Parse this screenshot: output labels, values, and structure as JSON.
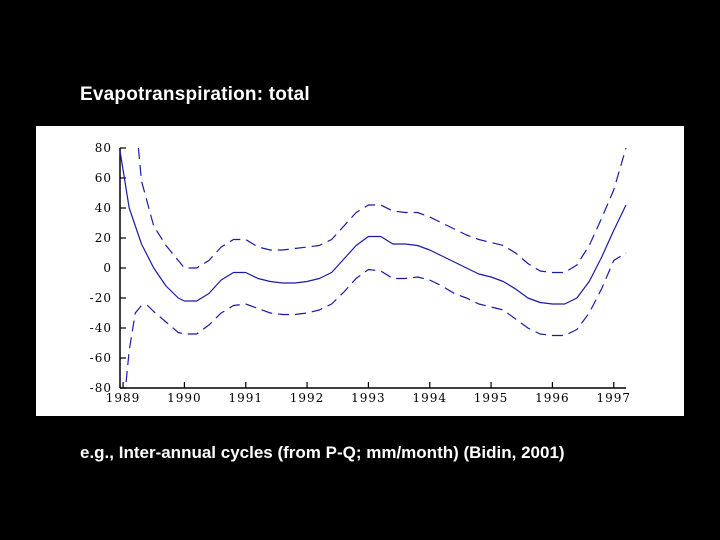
{
  "slide": {
    "title": "Evapotranspiration: total",
    "caption": "e.g., Inter-annual cycles (from P-Q; mm/month) (Bidin, 2001)"
  },
  "chart_data": {
    "type": "line",
    "title": "Evapotranspiration: total",
    "xlabel": "",
    "ylabel": "",
    "xlim": [
      1988.95,
      1997.2
    ],
    "ylim": [
      -80,
      80
    ],
    "x_ticks": [
      1989,
      1990,
      1991,
      1992,
      1993,
      1994,
      1995,
      1996,
      1997
    ],
    "y_ticks": [
      80,
      60,
      40,
      20,
      0,
      -20,
      -40,
      -60,
      -80
    ],
    "grid": false,
    "line_color": "#1a1aa8",
    "series": [
      {
        "style": "solid",
        "x": [
          1988.95,
          1989.1,
          1989.3,
          1989.5,
          1989.7,
          1989.9,
          1990.0,
          1990.2,
          1990.4,
          1990.6,
          1990.8,
          1991.0,
          1991.2,
          1991.4,
          1991.6,
          1991.8,
          1992.0,
          1992.2,
          1992.4,
          1992.6,
          1992.8,
          1993.0,
          1993.2,
          1993.4,
          1993.6,
          1993.8,
          1994.0,
          1994.2,
          1994.4,
          1994.6,
          1994.8,
          1995.0,
          1995.2,
          1995.4,
          1995.6,
          1995.8,
          1996.0,
          1996.2,
          1996.4,
          1996.6,
          1996.8,
          1997.0,
          1997.2
        ],
        "y": [
          78,
          40,
          16,
          0,
          -12,
          -20,
          -22,
          -22,
          -17,
          -8,
          -3,
          -3,
          -7,
          -9,
          -10,
          -10,
          -9,
          -7,
          -3,
          6,
          15,
          21,
          21,
          16,
          16,
          15,
          12,
          8,
          4,
          0,
          -4,
          -6,
          -9,
          -14,
          -20,
          -23,
          -24,
          -24,
          -20,
          -9,
          7,
          25,
          42
        ]
      },
      {
        "style": "dashed",
        "x": [
          1989.25,
          1989.3,
          1989.5,
          1989.7,
          1989.9,
          1990.0,
          1990.2,
          1990.4,
          1990.6,
          1990.8,
          1991.0,
          1991.2,
          1991.4,
          1991.6,
          1991.8,
          1992.0,
          1992.2,
          1992.4,
          1992.6,
          1992.8,
          1993.0,
          1993.2,
          1993.4,
          1993.6,
          1993.8,
          1994.0,
          1994.2,
          1994.4,
          1994.6,
          1994.8,
          1995.0,
          1995.2,
          1995.4,
          1995.6,
          1995.8,
          1996.0,
          1996.2,
          1996.4,
          1996.6,
          1996.8,
          1997.0,
          1997.2
        ],
        "y": [
          80,
          58,
          28,
          15,
          5,
          0,
          0,
          5,
          14,
          19,
          19,
          14,
          12,
          12,
          13,
          14,
          15,
          19,
          28,
          37,
          42,
          42,
          38,
          37,
          37,
          34,
          30,
          26,
          22,
          19,
          17,
          15,
          10,
          3,
          -2,
          -3,
          -3,
          2,
          15,
          33,
          52,
          80
        ]
      },
      {
        "style": "dashed",
        "x": [
          1989.05,
          1989.1,
          1989.2,
          1989.3,
          1989.4,
          1989.5,
          1989.7,
          1989.9,
          1990.0,
          1990.2,
          1990.4,
          1990.6,
          1990.8,
          1991.0,
          1991.2,
          1991.4,
          1991.6,
          1991.8,
          1992.0,
          1992.2,
          1992.4,
          1992.6,
          1992.8,
          1993.0,
          1993.2,
          1993.4,
          1993.6,
          1993.8,
          1994.0,
          1994.2,
          1994.4,
          1994.6,
          1994.8,
          1995.0,
          1995.2,
          1995.4,
          1995.6,
          1995.8,
          1996.0,
          1996.2,
          1996.4,
          1996.6,
          1996.8,
          1997.0,
          1997.2
        ],
        "y": [
          -76,
          -55,
          -30,
          -25,
          -25,
          -29,
          -36,
          -43,
          -44,
          -44,
          -38,
          -30,
          -25,
          -24,
          -27,
          -30,
          -31,
          -31,
          -30,
          -28,
          -24,
          -16,
          -7,
          -1,
          -2,
          -7,
          -7,
          -6,
          -8,
          -12,
          -17,
          -20,
          -24,
          -26,
          -28,
          -34,
          -40,
          -44,
          -45,
          -45,
          -41,
          -30,
          -14,
          5,
          10
        ]
      }
    ]
  }
}
